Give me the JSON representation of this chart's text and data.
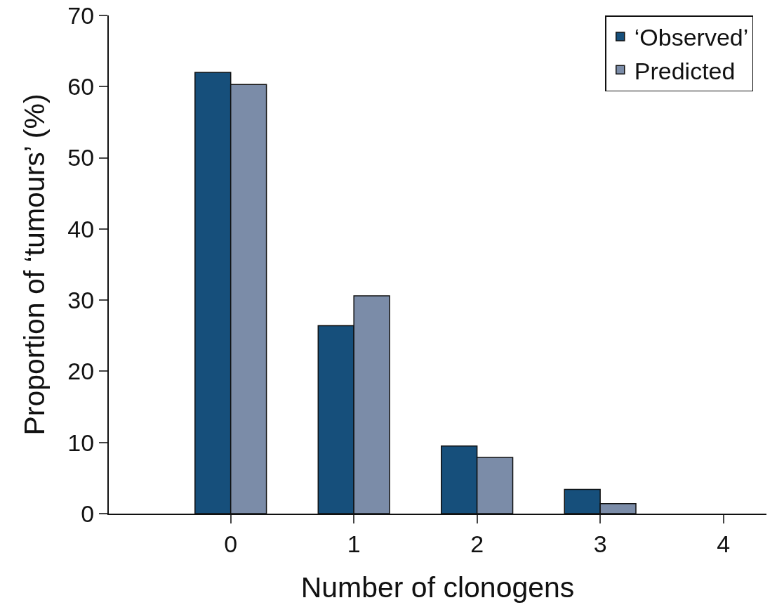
{
  "chart_data": {
    "type": "bar",
    "xlabel": "Number of clonogens",
    "ylabel": "Proportion of ‘tumours’ (%)",
    "categories": [
      "0",
      "1",
      "2",
      "3",
      "4"
    ],
    "series": [
      {
        "name": "‘Observed’",
        "color": "#164f7b",
        "values": [
          62,
          26.4,
          9.5,
          3.4,
          null
        ]
      },
      {
        "name": "Predicted",
        "color": "#7b8ca8",
        "values": [
          60.3,
          30.6,
          7.9,
          1.4,
          null
        ]
      }
    ],
    "ylim": [
      0,
      70
    ],
    "yticks": [
      0,
      10,
      20,
      30,
      40,
      50,
      60,
      70
    ],
    "grid": false,
    "legend": "top right"
  }
}
